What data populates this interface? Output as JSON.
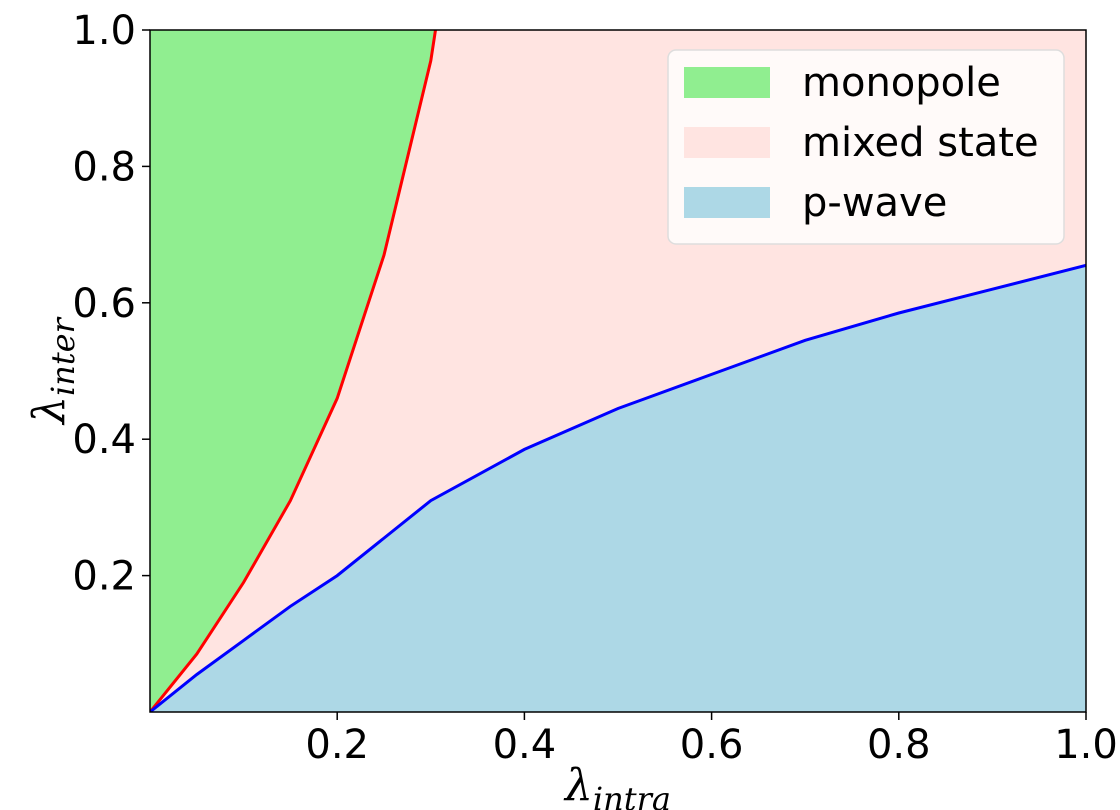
{
  "chart_data": {
    "type": "area",
    "title": "",
    "xlabel": {
      "symbol": "λ",
      "sub": "intra"
    },
    "ylabel": {
      "symbol": "λ",
      "sub": "inter"
    },
    "xlim": [
      0,
      1
    ],
    "ylim": [
      0,
      1
    ],
    "x_ticks": [
      "0.2",
      "0.4",
      "0.6",
      "0.8",
      "1.0"
    ],
    "y_ticks": [
      "0.2",
      "0.4",
      "0.6",
      "0.8",
      "1.0"
    ],
    "grid": false,
    "legend": {
      "position": "top-right"
    },
    "regions": [
      {
        "name": "monopole",
        "color": "#90ee90"
      },
      {
        "name": "mixed state",
        "color": "#ffe4e1"
      },
      {
        "name": "p-wave",
        "color": "#add8e6"
      }
    ],
    "boundaries": [
      {
        "color": "#ff0000",
        "x": [
          0,
          0.05,
          0.1,
          0.15,
          0.2,
          0.25,
          0.3,
          0.305
        ],
        "y": [
          0,
          0.085,
          0.19,
          0.31,
          0.46,
          0.67,
          0.955,
          1.0
        ]
      },
      {
        "color": "#0000ff",
        "x": [
          0,
          0.05,
          0.1,
          0.15,
          0.2,
          0.3,
          0.4,
          0.5,
          0.6,
          0.7,
          0.8,
          0.9,
          1.0
        ],
        "y": [
          0,
          0.055,
          0.105,
          0.155,
          0.2,
          0.31,
          0.385,
          0.445,
          0.495,
          0.545,
          0.585,
          0.62,
          0.655
        ]
      }
    ]
  }
}
